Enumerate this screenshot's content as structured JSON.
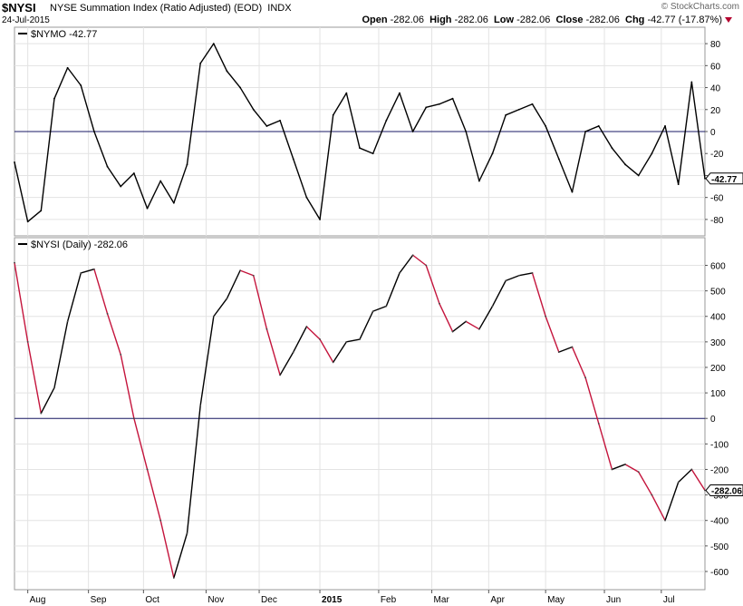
{
  "header": {
    "symbol": "$NYSI",
    "description": "NYSE Summation Index (Ratio Adjusted) (EOD)",
    "exchange": "INDX",
    "date": "24-Jul-2015",
    "brand": "© StockCharts.com",
    "open_label": "Open",
    "open": "-282.06",
    "high_label": "High",
    "high": "-282.06",
    "low_label": "Low",
    "low": "-282.06",
    "close_label": "Close",
    "close": "-282.06",
    "chg_label": "Chg",
    "chg": "-42.77 (-17.87%)"
  },
  "colors": {
    "up": "#000000",
    "down": "#c4143c",
    "zero_line": "#1a1a66",
    "grid": "#e3e3e3"
  },
  "chart_data": [
    {
      "type": "line",
      "legend": "$NYMO -42.77",
      "last_value_label": "-42.77",
      "ylim": [
        -90,
        90
      ],
      "yticks": [
        -80,
        -60,
        -40,
        -20,
        0,
        20,
        40,
        60,
        80
      ],
      "ytick_labels": [
        "-80",
        "-60",
        "-40",
        "-20",
        "0",
        "20",
        "40",
        "60",
        "80"
      ],
      "reference_line": 0,
      "x_range": [
        "2014-07-25",
        "2015-07-24"
      ],
      "x": [
        "2014-07-25",
        "2014-08-01",
        "2014-08-08",
        "2014-08-15",
        "2014-08-22",
        "2014-08-29",
        "2014-09-05",
        "2014-09-12",
        "2014-09-19",
        "2014-09-26",
        "2014-10-03",
        "2014-10-10",
        "2014-10-17",
        "2014-10-24",
        "2014-10-31",
        "2014-11-07",
        "2014-11-14",
        "2014-11-21",
        "2014-11-28",
        "2014-12-05",
        "2014-12-12",
        "2014-12-19",
        "2014-12-26",
        "2015-01-02",
        "2015-01-09",
        "2015-01-16",
        "2015-01-23",
        "2015-01-30",
        "2015-02-06",
        "2015-02-13",
        "2015-02-20",
        "2015-02-27",
        "2015-03-06",
        "2015-03-13",
        "2015-03-20",
        "2015-03-27",
        "2015-04-03",
        "2015-04-10",
        "2015-04-17",
        "2015-04-24",
        "2015-05-01",
        "2015-05-08",
        "2015-05-15",
        "2015-05-22",
        "2015-05-29",
        "2015-06-05",
        "2015-06-12",
        "2015-06-19",
        "2015-06-26",
        "2015-07-03",
        "2015-07-10",
        "2015-07-17",
        "2015-07-24"
      ],
      "values": [
        -28,
        -82,
        -72,
        30,
        58,
        42,
        0,
        -32,
        -50,
        -38,
        -70,
        -45,
        -65,
        -30,
        62,
        80,
        55,
        40,
        20,
        5,
        10,
        -25,
        -60,
        -80,
        15,
        35,
        -15,
        -20,
        10,
        35,
        0,
        22,
        25,
        30,
        0,
        -45,
        -20,
        15,
        20,
        25,
        5,
        -25,
        -55,
        0,
        5,
        -15,
        -30,
        -40,
        -20,
        5,
        -48,
        45,
        -42.77
      ]
    },
    {
      "type": "line",
      "legend": "$NYSI (Daily) -282.06",
      "last_value_label": "-282.06",
      "ylim": [
        -650,
        680
      ],
      "yticks": [
        -600,
        -500,
        -400,
        -300,
        -200,
        -100,
        0,
        100,
        200,
        300,
        400,
        500,
        600
      ],
      "ytick_labels": [
        "-600",
        "-500",
        "-400",
        "-300",
        "-200",
        "-100",
        "0",
        "100",
        "200",
        "300",
        "400",
        "500",
        "600"
      ],
      "reference_line": 0,
      "x_range": [
        "2014-07-25",
        "2015-07-24"
      ],
      "x_tick_labels": [
        {
          "date": "2014-08-01",
          "label": "Aug"
        },
        {
          "date": "2014-09-02",
          "label": "Sep"
        },
        {
          "date": "2014-10-01",
          "label": "Oct"
        },
        {
          "date": "2014-11-03",
          "label": "Nov"
        },
        {
          "date": "2014-12-01",
          "label": "Dec"
        },
        {
          "date": "2015-01-02",
          "label": "2015"
        },
        {
          "date": "2015-02-02",
          "label": "Feb"
        },
        {
          "date": "2015-03-02",
          "label": "Mar"
        },
        {
          "date": "2015-04-01",
          "label": "Apr"
        },
        {
          "date": "2015-05-01",
          "label": "May"
        },
        {
          "date": "2015-06-01",
          "label": "Jun"
        },
        {
          "date": "2015-07-01",
          "label": "Jul"
        }
      ],
      "x": [
        "2014-07-25",
        "2014-08-01",
        "2014-08-08",
        "2014-08-15",
        "2014-08-22",
        "2014-08-29",
        "2014-09-05",
        "2014-09-12",
        "2014-09-19",
        "2014-09-26",
        "2014-10-03",
        "2014-10-10",
        "2014-10-17",
        "2014-10-24",
        "2014-10-31",
        "2014-11-07",
        "2014-11-14",
        "2014-11-21",
        "2014-11-28",
        "2014-12-05",
        "2014-12-12",
        "2014-12-19",
        "2014-12-26",
        "2015-01-02",
        "2015-01-09",
        "2015-01-16",
        "2015-01-23",
        "2015-01-30",
        "2015-02-06",
        "2015-02-13",
        "2015-02-20",
        "2015-02-27",
        "2015-03-06",
        "2015-03-13",
        "2015-03-20",
        "2015-03-27",
        "2015-04-03",
        "2015-04-10",
        "2015-04-17",
        "2015-04-24",
        "2015-05-01",
        "2015-05-08",
        "2015-05-15",
        "2015-05-22",
        "2015-05-29",
        "2015-06-05",
        "2015-06-12",
        "2015-06-19",
        "2015-06-26",
        "2015-07-03",
        "2015-07-10",
        "2015-07-17",
        "2015-07-24"
      ],
      "values": [
        610,
        300,
        20,
        120,
        380,
        570,
        585,
        410,
        250,
        0,
        -200,
        -400,
        -625,
        -450,
        50,
        400,
        470,
        580,
        560,
        350,
        170,
        260,
        360,
        310,
        220,
        300,
        310,
        420,
        440,
        570,
        640,
        600,
        450,
        340,
        380,
        350,
        440,
        540,
        560,
        570,
        400,
        260,
        280,
        160,
        -20,
        -200,
        -180,
        -210,
        -300,
        -400,
        -250,
        -200,
        -282.06
      ]
    }
  ]
}
